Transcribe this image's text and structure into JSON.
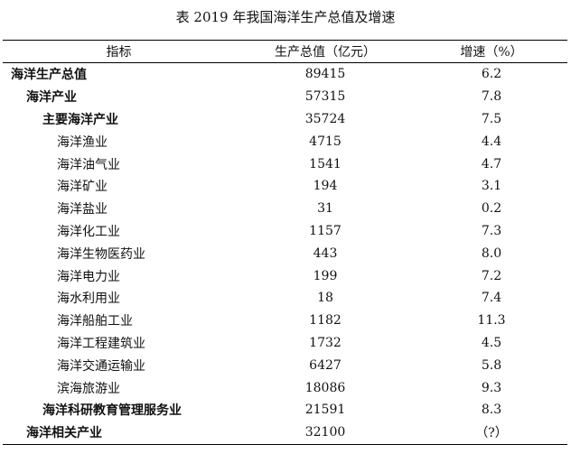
{
  "caption": "表  2019 年我国海洋生产总值及增速",
  "headers": [
    "指标",
    "生产总值（亿元）",
    "增速（%）"
  ],
  "rows": [
    {
      "name": "海洋生产总值",
      "value": "89415",
      "growth": "6.2",
      "level": 0,
      "bold": true
    },
    {
      "name": "海洋产业",
      "value": "57315",
      "growth": "7.8",
      "level": 1,
      "bold": true
    },
    {
      "name": "主要海洋产业",
      "value": "35724",
      "growth": "7.5",
      "level": 2,
      "bold": true
    },
    {
      "name": "海洋渔业",
      "value": "4715",
      "growth": "4.4",
      "level": 3,
      "bold": false
    },
    {
      "name": "海洋油气业",
      "value": "1541",
      "growth": "4.7",
      "level": 3,
      "bold": false
    },
    {
      "name": "海洋矿业",
      "value": "194",
      "growth": "3.1",
      "level": 3,
      "bold": false
    },
    {
      "name": "海洋盐业",
      "value": "31",
      "growth": "0.2",
      "level": 3,
      "bold": false
    },
    {
      "name": "海洋化工业",
      "value": "1157",
      "growth": "7.3",
      "level": 3,
      "bold": false
    },
    {
      "name": "海洋生物医药业",
      "value": "443",
      "growth": "8.0",
      "level": 3,
      "bold": false
    },
    {
      "name": "海洋电力业",
      "value": "199",
      "growth": "7.2",
      "level": 3,
      "bold": false
    },
    {
      "name": "海水利用业",
      "value": "18",
      "growth": "7.4",
      "level": 3,
      "bold": false
    },
    {
      "name": "海洋船舶工业",
      "value": "1182",
      "growth": "11.3",
      "level": 3,
      "bold": false
    },
    {
      "name": "海洋工程建筑业",
      "value": "1732",
      "growth": "4.5",
      "level": 3,
      "bold": false
    },
    {
      "name": "海洋交通运输业",
      "value": "6427",
      "growth": "5.8",
      "level": 3,
      "bold": false
    },
    {
      "name": "滨海旅游业",
      "value": "18086",
      "growth": "9.3",
      "level": 3,
      "bold": false
    },
    {
      "name": "海洋科研教育管理服务业",
      "value": "21591",
      "growth": "8.3",
      "level": 2,
      "bold": true
    },
    {
      "name": "海洋相关产业",
      "value": "32100",
      "growth": "（?）",
      "level": 1,
      "bold": true
    }
  ]
}
